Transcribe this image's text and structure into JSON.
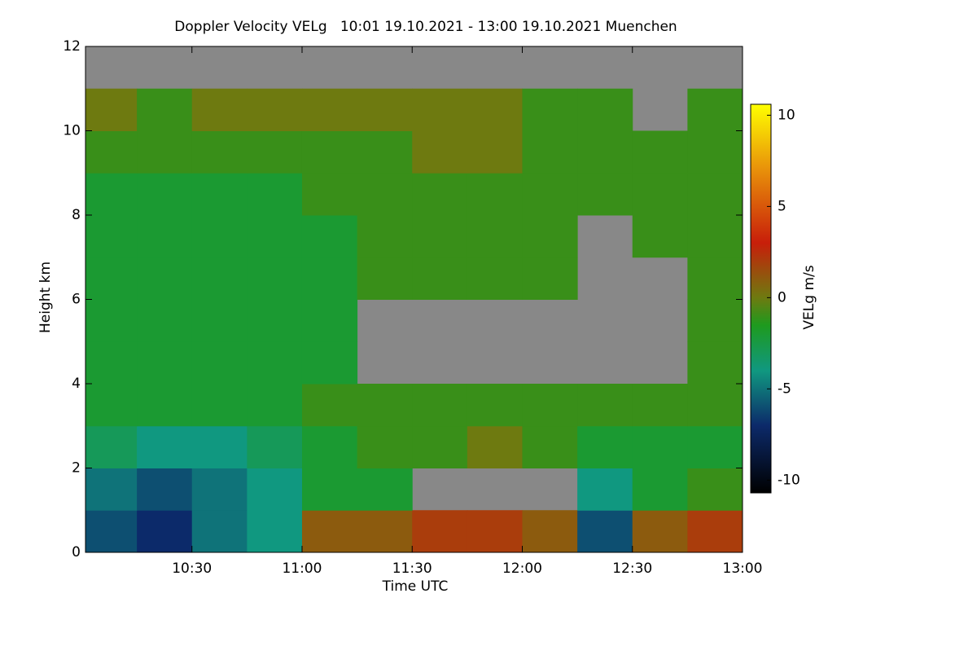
{
  "chart_data": {
    "type": "heatmap",
    "title": "Doppler Velocity VELg   10:01 19.10.2021 - 13:00 19.10.2021 Muenchen",
    "x_label": "Time UTC",
    "y_label": "Height km",
    "colorbar_label": "VELg m/s",
    "x_edges": [
      10.0167,
      10.25,
      10.5,
      10.75,
      11.0,
      11.25,
      11.5,
      11.75,
      12.0,
      12.25,
      12.5,
      12.75,
      13.0
    ],
    "y_edges": [
      0,
      1,
      2,
      3,
      4,
      5,
      6,
      7,
      8,
      9,
      10,
      11,
      12
    ],
    "z": [
      [
        -6,
        -7,
        -5,
        -4,
        1,
        1,
        2,
        2,
        1,
        -6,
        1,
        2
      ],
      [
        -5,
        -6,
        -5,
        -4,
        -2,
        -2,
        null,
        null,
        null,
        -4,
        -2,
        -1
      ],
      [
        -3,
        -4,
        -4,
        -3,
        -2,
        -1,
        -1,
        0,
        -1,
        -2,
        -2,
        -2
      ],
      [
        -2,
        -2,
        -2,
        -2,
        -1,
        -1,
        -1,
        -1,
        -1,
        -1,
        -1,
        -1
      ],
      [
        -2,
        -2,
        -2,
        -2,
        -2,
        null,
        null,
        null,
        null,
        null,
        null,
        -1
      ],
      [
        -2,
        -2,
        -2,
        -2,
        -2,
        null,
        null,
        null,
        null,
        null,
        null,
        -1
      ],
      [
        -2,
        -2,
        -2,
        -2,
        -2,
        -1,
        -1,
        -1,
        -1,
        null,
        null,
        -1
      ],
      [
        -2,
        -2,
        -2,
        -2,
        -2,
        -1,
        -1,
        -1,
        -1,
        null,
        -1,
        -1
      ],
      [
        -2,
        -2,
        -2,
        -2,
        -1,
        -1,
        -1,
        -1,
        -1,
        -1,
        -1,
        -1
      ],
      [
        -1,
        -1,
        -1,
        -1,
        -1,
        -1,
        0,
        0,
        -1,
        -1,
        -1,
        -1
      ],
      [
        0,
        -1,
        0,
        0,
        0,
        0,
        0,
        0,
        -1,
        -1,
        null,
        -1
      ],
      [
        null,
        null,
        null,
        null,
        null,
        null,
        null,
        null,
        null,
        null,
        null,
        null
      ]
    ],
    "missing_color": "#888888",
    "xlim": [
      10.0167,
      13.0
    ],
    "ylim": [
      0,
      12
    ],
    "xticks": [
      {
        "value": 10.5,
        "label": "10:30"
      },
      {
        "value": 11.0,
        "label": "11:00"
      },
      {
        "value": 11.5,
        "label": "11:30"
      },
      {
        "value": 12.0,
        "label": "12:00"
      },
      {
        "value": 12.5,
        "label": "12:30"
      },
      {
        "value": 13.0,
        "label": "13:00"
      }
    ],
    "yticks": [
      0,
      2,
      4,
      6,
      8,
      10,
      12
    ],
    "clim": [
      -10.7,
      10.6
    ],
    "cticks": [
      -10,
      -5,
      0,
      5,
      10
    ],
    "colorscale": [
      [
        -10.7,
        "#000000"
      ],
      [
        -7,
        "#0c2a6a"
      ],
      [
        -4,
        "#109880"
      ],
      [
        -1.5,
        "#1e9a1e"
      ],
      [
        0,
        "#6e7a10"
      ],
      [
        3,
        "#c81e0a"
      ],
      [
        7,
        "#e8900a"
      ],
      [
        10.6,
        "#ffff00"
      ]
    ]
  }
}
